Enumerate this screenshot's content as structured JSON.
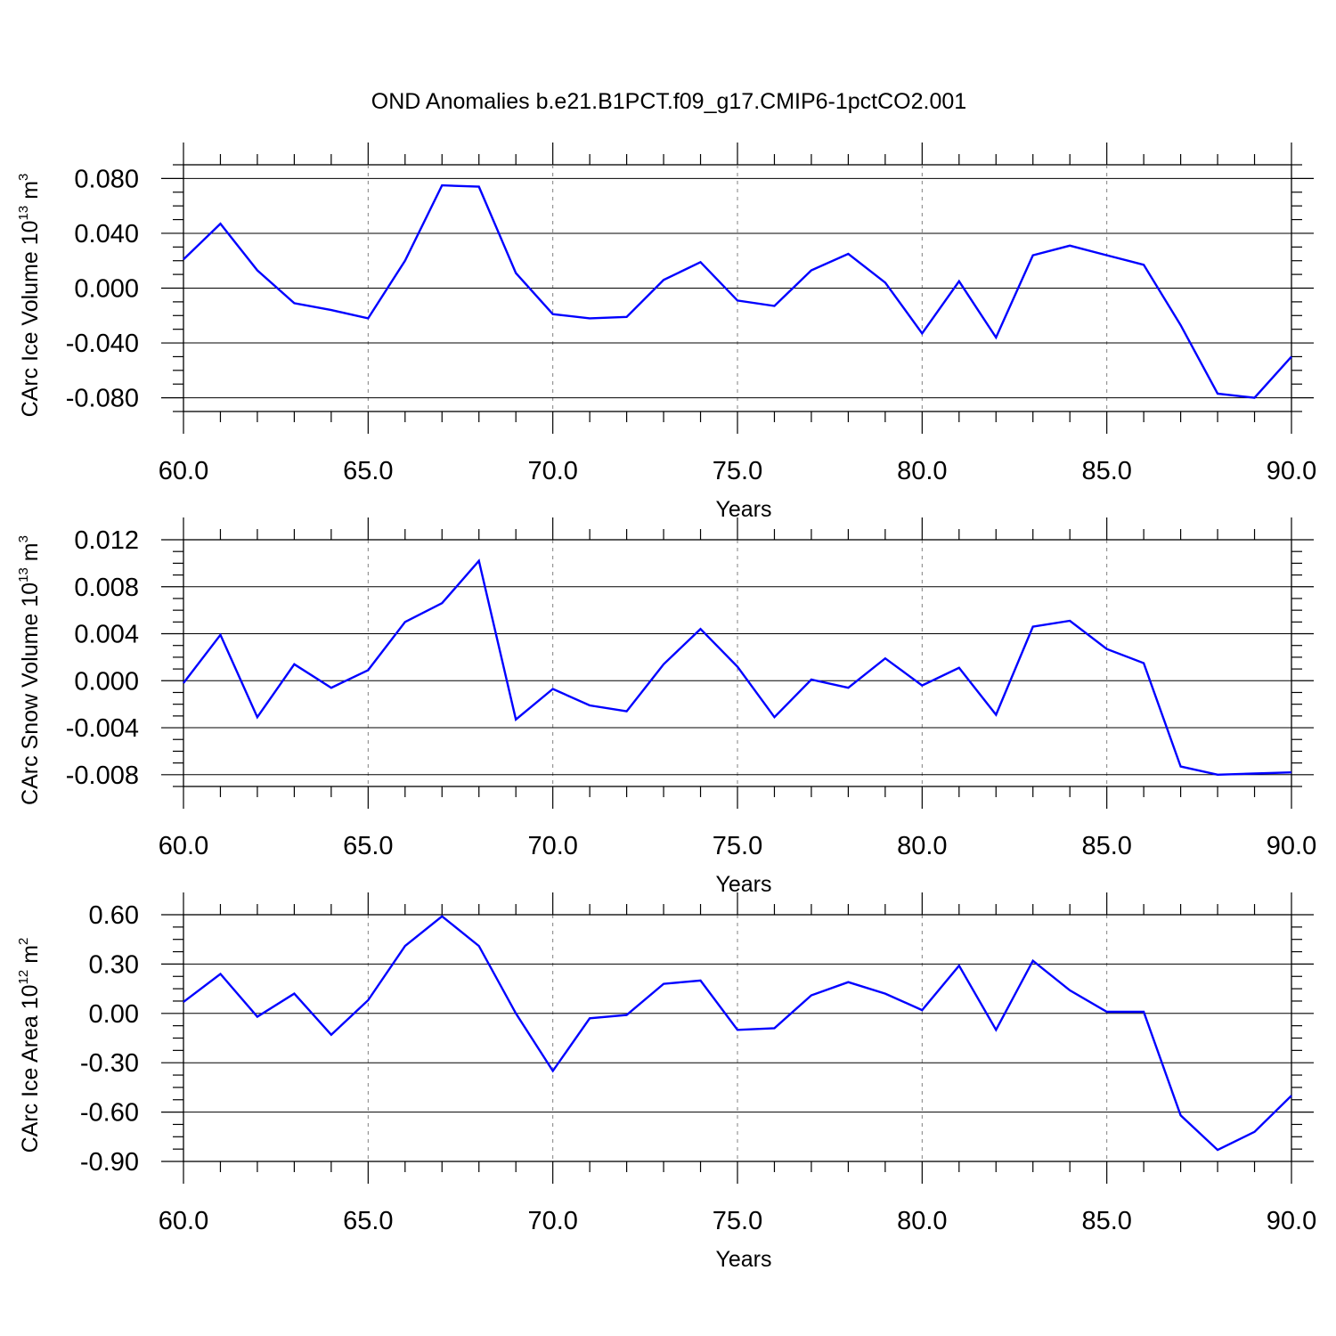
{
  "title": "OND Anomalies b.e21.B1PCT.f09_g17.CMIP6-1pctCO2.001",
  "colors": {
    "line": "#0000ff",
    "axis": "#000000",
    "grid": "#808080"
  },
  "chart_data": [
    {
      "type": "line",
      "ylabel": "CArc Ice Volume 10",
      "ylabel_exponent": "13",
      "ylabel_unit": " m",
      "ylabel_unit_exponent": "3",
      "xlabel": "Years",
      "xlim": [
        60,
        90
      ],
      "ylim": [
        -0.09,
        0.09
      ],
      "x_ticks": [
        "60.0",
        "65.0",
        "70.0",
        "75.0",
        "80.0",
        "85.0",
        "90.0"
      ],
      "y_ticks": [
        "0.080",
        "0.040",
        "0.000",
        "-0.040",
        "-0.080"
      ],
      "y_tick_values": [
        0.08,
        0.04,
        0.0,
        -0.04,
        -0.08
      ],
      "grid": "vertical dashed at major x ticks",
      "x": [
        60,
        61,
        62,
        63,
        64,
        65,
        66,
        67,
        68,
        69,
        70,
        71,
        72,
        73,
        74,
        75,
        76,
        77,
        78,
        79,
        80,
        81,
        82,
        83,
        84,
        85,
        86,
        87,
        88,
        89,
        90
      ],
      "values": [
        0.021,
        0.047,
        0.013,
        -0.011,
        -0.016,
        -0.022,
        0.02,
        0.075,
        0.074,
        0.011,
        -0.019,
        -0.022,
        -0.021,
        0.006,
        0.019,
        -0.009,
        -0.013,
        0.013,
        0.025,
        0.004,
        -0.033,
        0.005,
        -0.036,
        0.024,
        0.031,
        0.024,
        0.017,
        -0.027,
        -0.077,
        -0.08,
        -0.05
      ]
    },
    {
      "type": "line",
      "ylabel": "CArc Snow Volume 10",
      "ylabel_exponent": "13",
      "ylabel_unit": " m",
      "ylabel_unit_exponent": "3",
      "xlabel": "Years",
      "xlim": [
        60,
        90
      ],
      "ylim": [
        -0.009,
        0.012
      ],
      "x_ticks": [
        "60.0",
        "65.0",
        "70.0",
        "75.0",
        "80.0",
        "85.0",
        "90.0"
      ],
      "y_ticks": [
        "0.012",
        "0.008",
        "0.004",
        "0.000",
        "-0.004",
        "-0.008"
      ],
      "y_tick_values": [
        0.012,
        0.008,
        0.004,
        0.0,
        -0.004,
        -0.008
      ],
      "grid": "vertical dashed at major x ticks",
      "x": [
        60,
        61,
        62,
        63,
        64,
        65,
        66,
        67,
        68,
        69,
        70,
        71,
        72,
        73,
        74,
        75,
        76,
        77,
        78,
        79,
        80,
        81,
        82,
        83,
        84,
        85,
        86,
        87,
        88,
        89,
        90
      ],
      "values": [
        -0.0002,
        0.0039,
        -0.0031,
        0.0014,
        -0.0006,
        0.0009,
        0.005,
        0.0066,
        0.0102,
        -0.0033,
        -0.0007,
        -0.0021,
        -0.0026,
        0.0014,
        0.0044,
        0.0012,
        -0.0031,
        0.0001,
        -0.0006,
        0.0019,
        -0.0004,
        0.0011,
        -0.0029,
        0.0046,
        0.0051,
        0.0027,
        0.0015,
        -0.0073,
        -0.008,
        -0.0079,
        -0.0078
      ]
    },
    {
      "type": "line",
      "ylabel": "CArc Ice Area 10",
      "ylabel_exponent": "12",
      "ylabel_unit": " m",
      "ylabel_unit_exponent": "2",
      "xlabel": "Years",
      "xlim": [
        60,
        90
      ],
      "ylim": [
        -0.9,
        0.6
      ],
      "x_ticks": [
        "60.0",
        "65.0",
        "70.0",
        "75.0",
        "80.0",
        "85.0",
        "90.0"
      ],
      "y_ticks": [
        "0.60",
        "0.30",
        "0.00",
        "-0.30",
        "-0.60",
        "-0.90"
      ],
      "y_tick_values": [
        0.6,
        0.3,
        0.0,
        -0.3,
        -0.6,
        -0.9
      ],
      "grid": "vertical dashed at major x ticks",
      "x": [
        60,
        61,
        62,
        63,
        64,
        65,
        66,
        67,
        68,
        69,
        70,
        71,
        72,
        73,
        74,
        75,
        76,
        77,
        78,
        79,
        80,
        81,
        82,
        83,
        84,
        85,
        86,
        87,
        88,
        89,
        90
      ],
      "values": [
        0.07,
        0.24,
        -0.02,
        0.12,
        -0.13,
        0.08,
        0.41,
        0.59,
        0.41,
        0.0,
        -0.35,
        -0.03,
        -0.01,
        0.18,
        0.2,
        -0.1,
        -0.09,
        0.11,
        0.19,
        0.12,
        0.02,
        0.29,
        -0.1,
        0.32,
        0.14,
        0.01,
        0.01,
        -0.62,
        -0.83,
        -0.72,
        -0.5
      ]
    }
  ]
}
